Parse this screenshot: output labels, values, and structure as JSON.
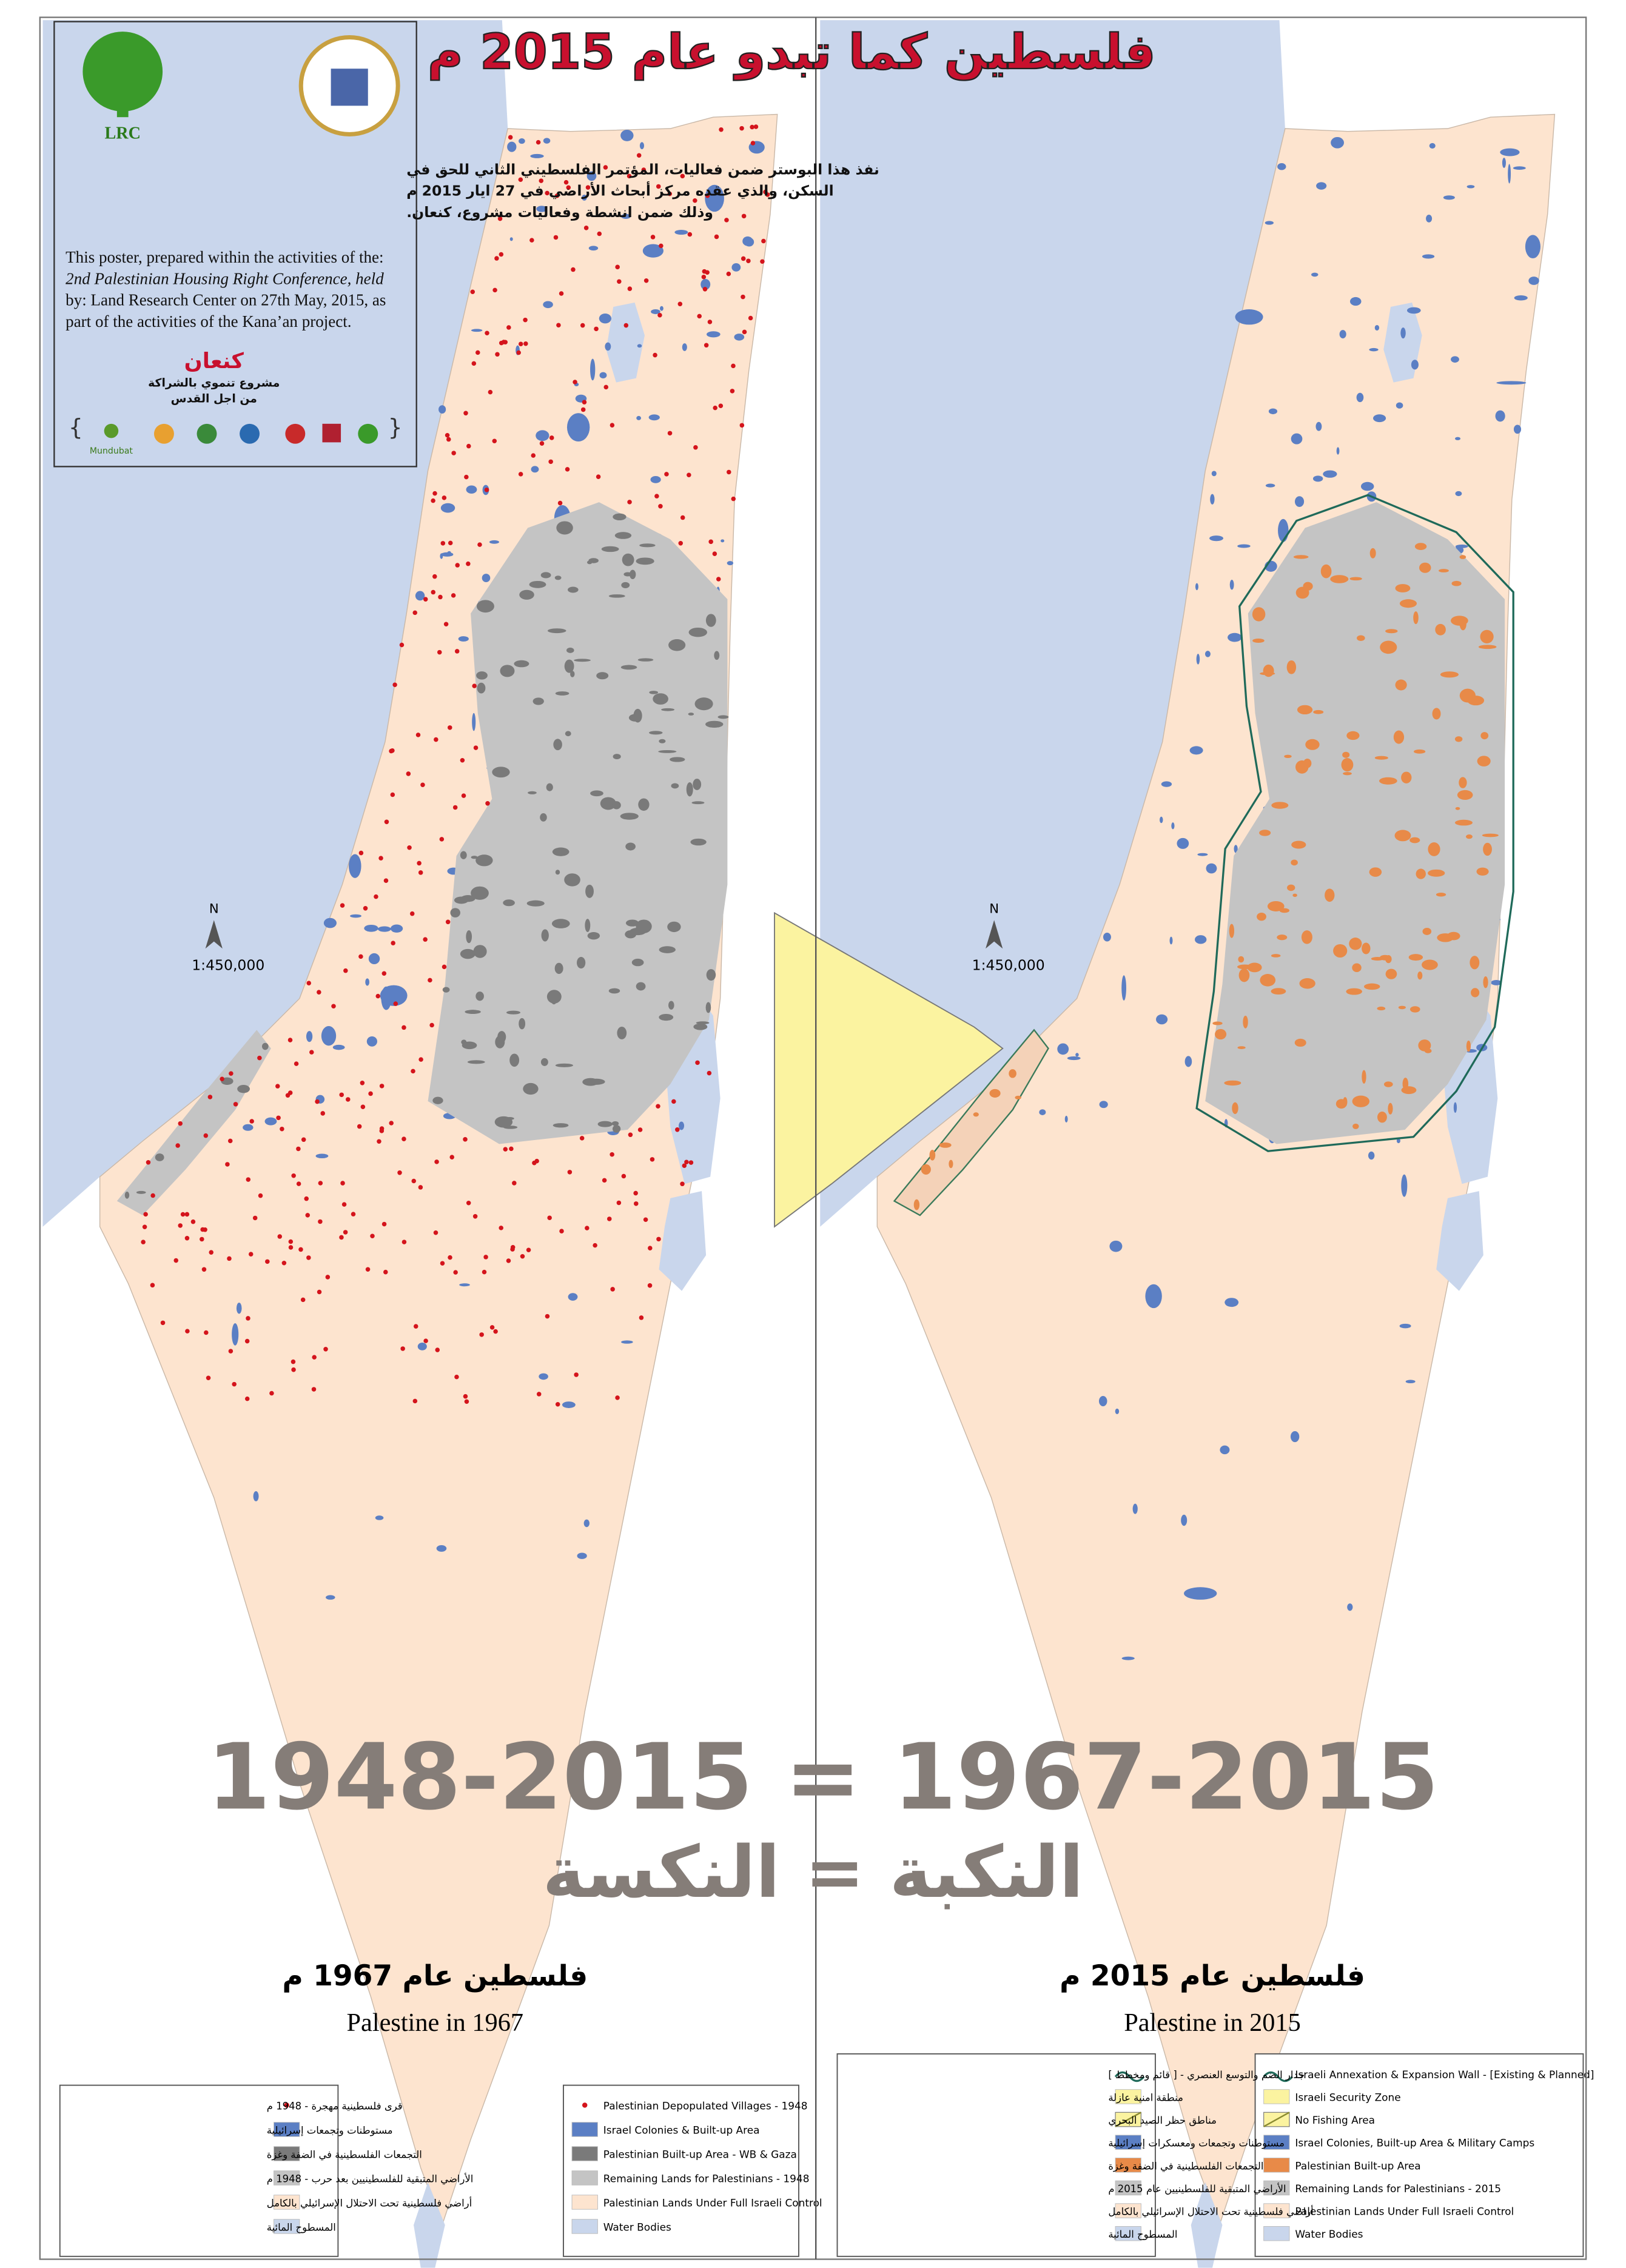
{
  "title": "فلسطين كما تبدو عام 2015 م",
  "info_box": {
    "logo_text": "LRC",
    "arabic_lines": [
      "نفذ هذا البوستر ضمن فعاليات، المؤتمر الفلسطيني الثاني للحق في",
      "السكن، والذي عقده مركز أبحاث الأراضي في 27 ايار 2015 م",
      "وذلك ضمن انشطة وفعاليات مشروع، كنعان."
    ],
    "english_lines": [
      "This poster, prepared within the activities of the:",
      "2nd Palestinian Housing Right Conference, held",
      "by: Land Research Center on 27th May, 2015, as",
      "part of the activities of the Kana’an project."
    ],
    "project_name": "كنعان",
    "project_lines": [
      "مشروع تنموي بالشراكة",
      "من اجل القدس"
    ],
    "partner": "Mundubat"
  },
  "equation": "1948-2015 = 1967-2015",
  "equation_arabic": "النكبة = النكسة",
  "maps": [
    {
      "title_ar": "فلسطين عام 1967 م",
      "title_en": "Palestine in 1967",
      "north": "N",
      "scale": "1:450,000",
      "legend_en": [
        "Palestinian Depopulated Villages - 1948",
        "Israel Colonies & Built-up Area",
        "Palestinian Built-up Area - WB & Gaza",
        "Remaining Lands for Palestinians - 1948",
        "Palestinian Lands Under Full Israeli Control",
        "Water Bodies"
      ],
      "legend_ar": [
        "قرى فلسطينية مهجرة - 1948 م",
        "مستوطنات وتجمعات إسرائيلية",
        "التجمعات الفلسطينية في الضفة وغزة",
        "الأراضي المتبقية للفلسطينيين بعد حرب - 1948 م",
        "أراضي فلسطينية تحت الاحتلال الإسرائيلي بالكامل",
        "المسطوح المائية"
      ]
    },
    {
      "title_ar": "فلسطين عام 2015 م",
      "title_en": "Palestine in 2015",
      "north": "N",
      "scale": "1:450,000",
      "legend_en": [
        "Israeli Annexation & Expansion Wall - [Existing & Planned]",
        "Israeli Security Zone",
        "No Fishing Area",
        "Israel Colonies, Built-up Area & Military Camps",
        "Palestinian Built-up Area",
        "Remaining Lands for Palestinians - 2015",
        "Palestinian Lands Under Full Israeli Control",
        "Water Bodies"
      ],
      "legend_ar": [
        "جدار الضم والتوسع العنصري - [ قائم ومخطط ]",
        "منطقة امنية عازلة",
        "مناطق حظر الصيد البحري",
        "مستوطنات وتجمعات ومعسكرات إسرائيلية",
        "التجمعات الفلسطينية في الضفة وغزة",
        "الأراضي المتبقية للفلسطينيين عام 2015 م",
        "أراضي فلسطينية تحت الاحتلال الإسرائيلي بالكامل",
        "المسطوح المائية"
      ]
    }
  ]
}
